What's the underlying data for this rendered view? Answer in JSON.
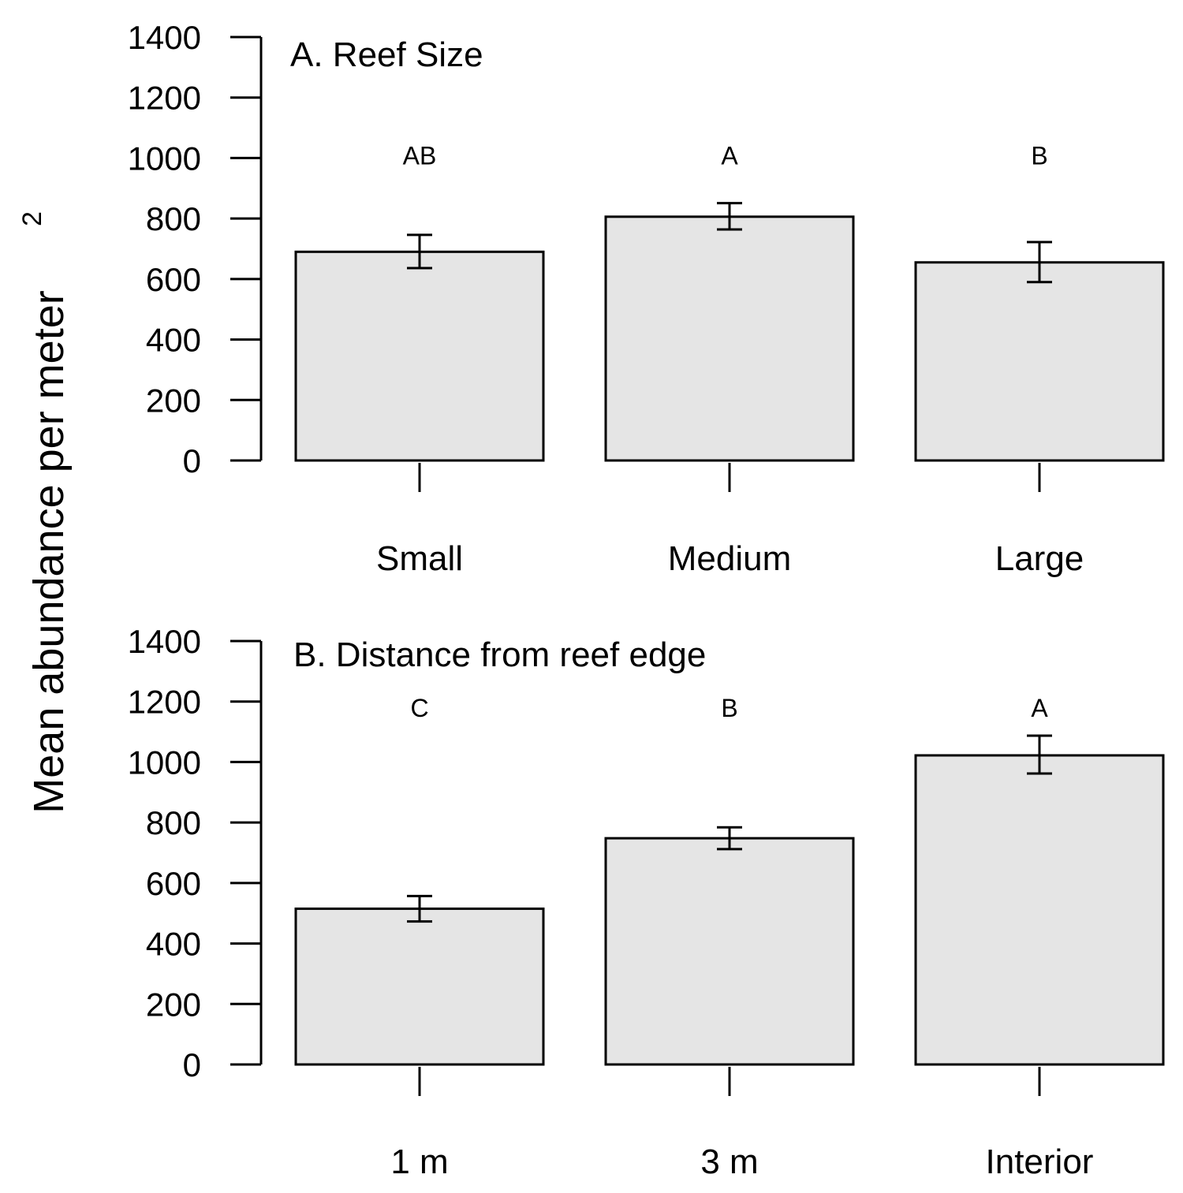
{
  "colors": {
    "bar_fill": "#e5e5e5",
    "stroke": "#000000",
    "background": "#ffffff"
  },
  "y_axis_title": {
    "text": "Mean abundance per meter",
    "superscript": "2"
  },
  "chart_data": [
    {
      "type": "bar",
      "title": "A. Reef Size",
      "categories": [
        "Small",
        "Medium",
        "Large"
      ],
      "values": [
        690,
        806,
        655
      ],
      "error_low": [
        636,
        764,
        590
      ],
      "error_high": [
        746,
        851,
        722
      ],
      "significance": [
        "AB",
        "A",
        "B"
      ],
      "significance_level": 1000,
      "ylabel": "Mean abundance per meter 2",
      "xlabel": "",
      "ylim": [
        0,
        1400
      ],
      "yticks": [
        0,
        200,
        400,
        600,
        800,
        1000,
        1200,
        1400
      ],
      "ytick_labels": [
        "0",
        "200",
        "400",
        "600",
        "800",
        "1000",
        "1200",
        "1400"
      ],
      "grid": false
    },
    {
      "type": "bar",
      "title": "B. Distance from reef edge",
      "categories": [
        "1 m",
        "3 m",
        "Interior"
      ],
      "values": [
        515,
        748,
        1022
      ],
      "error_low": [
        473,
        712,
        962
      ],
      "error_high": [
        557,
        784,
        1087
      ],
      "significance": [
        "C",
        "B",
        "A"
      ],
      "significance_level": 1170,
      "ylabel": "Mean abundance per meter 2",
      "xlabel": "",
      "ylim": [
        0,
        1400
      ],
      "yticks": [
        0,
        200,
        400,
        600,
        800,
        1000,
        1200,
        1400
      ],
      "ytick_labels": [
        "0",
        "200",
        "400",
        "600",
        "800",
        "1000",
        "1200",
        "1400"
      ],
      "grid": false
    }
  ]
}
